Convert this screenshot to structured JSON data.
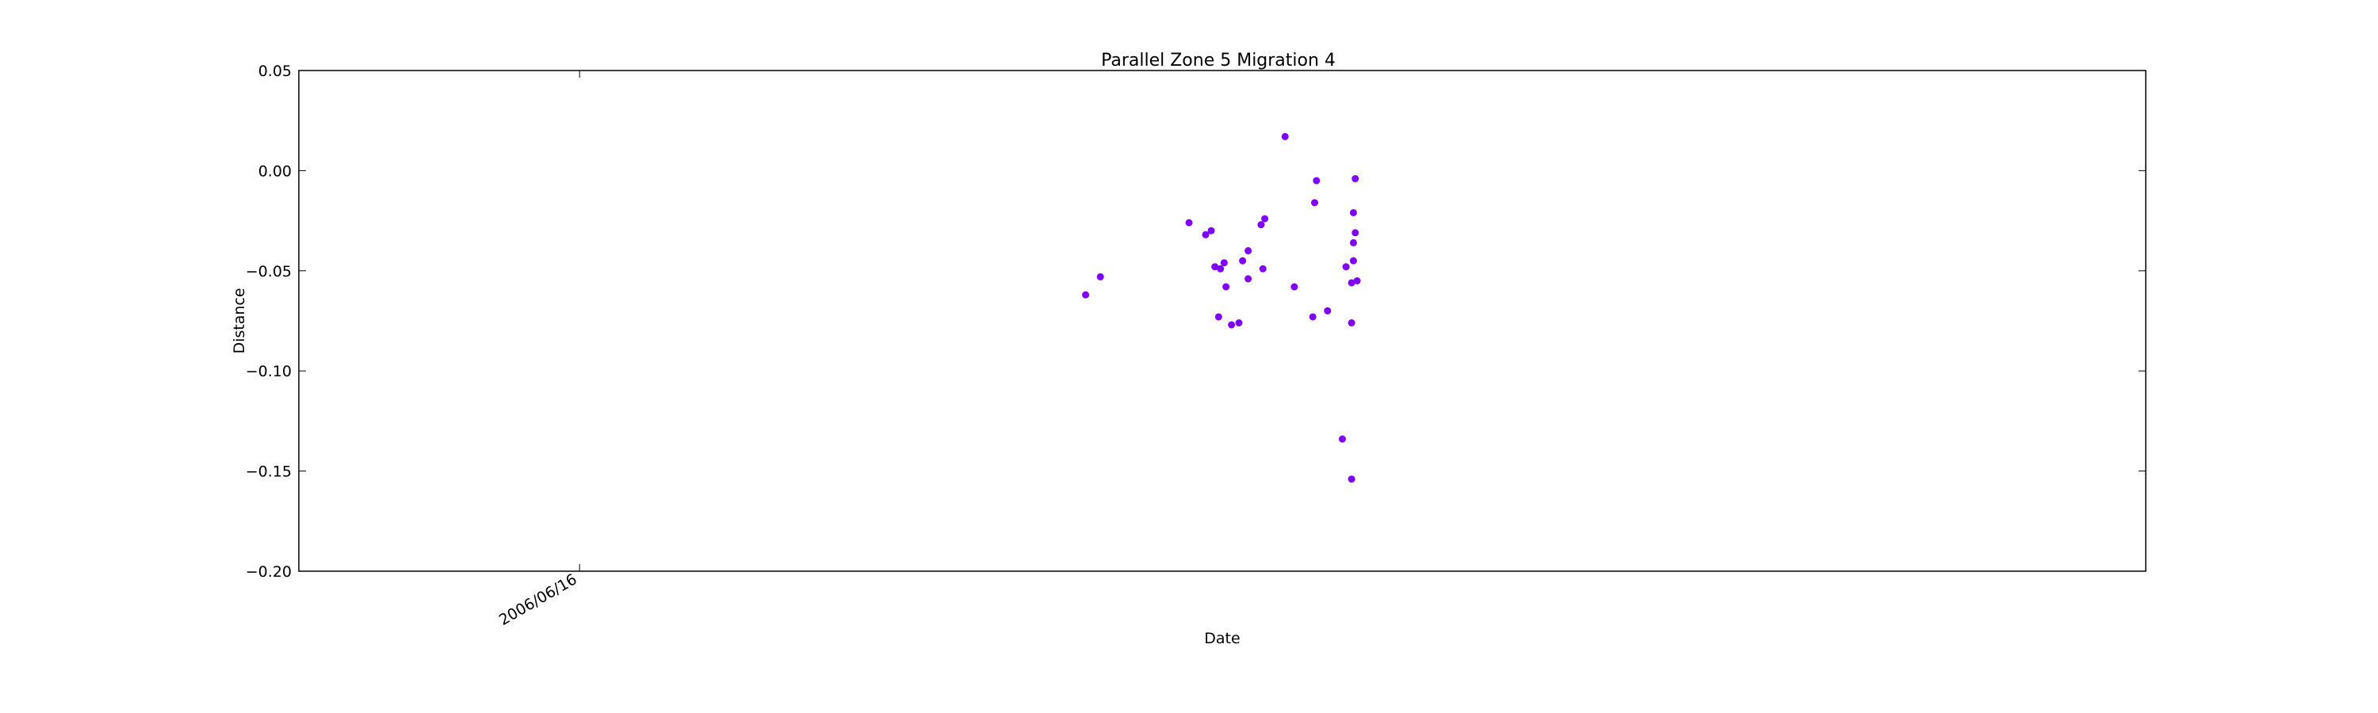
{
  "chart_data": {
    "type": "scatter",
    "title": "Parallel Zone 5 Migration 4",
    "xlabel": "Date",
    "ylabel": "Distance",
    "ylim": [
      -0.2,
      0.05
    ],
    "yticks": [
      0.05,
      0.0,
      -0.05,
      -0.1,
      -0.15,
      -0.2
    ],
    "ytick_labels": [
      "0.05",
      "0.00",
      "−0.05",
      "−0.10",
      "−0.15",
      "−0.20"
    ],
    "xticks": [
      {
        "label": "2006/06/16",
        "pos": 0.152
      }
    ],
    "grid": false,
    "marker_color": "#7f00ff",
    "points": [
      {
        "x": 0.426,
        "y": -0.062
      },
      {
        "x": 0.434,
        "y": -0.053
      },
      {
        "x": 0.482,
        "y": -0.026
      },
      {
        "x": 0.491,
        "y": -0.032
      },
      {
        "x": 0.494,
        "y": -0.03
      },
      {
        "x": 0.496,
        "y": -0.048
      },
      {
        "x": 0.499,
        "y": -0.049
      },
      {
        "x": 0.501,
        "y": -0.046
      },
      {
        "x": 0.502,
        "y": -0.058
      },
      {
        "x": 0.498,
        "y": -0.073
      },
      {
        "x": 0.505,
        "y": -0.077
      },
      {
        "x": 0.509,
        "y": -0.076
      },
      {
        "x": 0.511,
        "y": -0.045
      },
      {
        "x": 0.514,
        "y": -0.04
      },
      {
        "x": 0.514,
        "y": -0.054
      },
      {
        "x": 0.521,
        "y": -0.027
      },
      {
        "x": 0.523,
        "y": -0.024
      },
      {
        "x": 0.522,
        "y": -0.049
      },
      {
        "x": 0.534,
        "y": 0.017
      },
      {
        "x": 0.539,
        "y": -0.058
      },
      {
        "x": 0.549,
        "y": -0.073
      },
      {
        "x": 0.55,
        "y": -0.016
      },
      {
        "x": 0.551,
        "y": -0.005
      },
      {
        "x": 0.557,
        "y": -0.07
      },
      {
        "x": 0.565,
        "y": -0.134
      },
      {
        "x": 0.567,
        "y": -0.048
      },
      {
        "x": 0.57,
        "y": -0.154
      },
      {
        "x": 0.57,
        "y": -0.076
      },
      {
        "x": 0.57,
        "y": -0.056
      },
      {
        "x": 0.571,
        "y": -0.045
      },
      {
        "x": 0.571,
        "y": -0.036
      },
      {
        "x": 0.571,
        "y": -0.021
      },
      {
        "x": 0.572,
        "y": -0.031
      },
      {
        "x": 0.572,
        "y": -0.004
      },
      {
        "x": 0.573,
        "y": -0.055
      }
    ]
  }
}
